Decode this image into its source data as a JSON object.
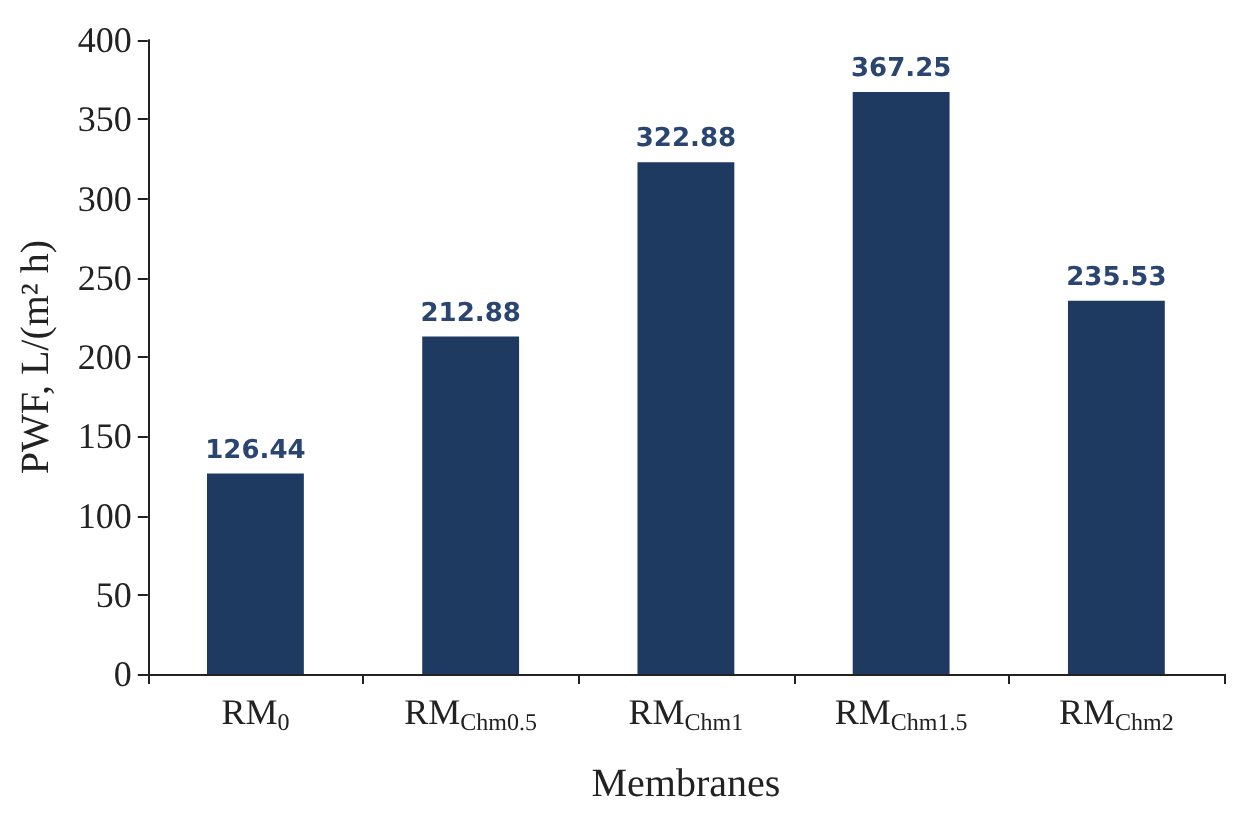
{
  "chart_data": {
    "type": "bar",
    "xlabel": "Membranes",
    "ylabel": "PWF, L/(m² h)",
    "categories": [
      "RM$_{0}$",
      "RM$_{Chm0.5}$",
      "RM$_{Chm1}$",
      "RM$_{Chm1.5}$",
      "RM$_{Chm2}$"
    ],
    "values": [
      126.44,
      212.88,
      322.88,
      367.25,
      235.53
    ],
    "color": "#1f3a60",
    "ylim": [
      0,
      400
    ],
    "yticks": [
      0,
      50,
      100,
      150,
      200,
      250,
      300,
      350,
      400
    ],
    "grid": false,
    "data_labels": true
  }
}
